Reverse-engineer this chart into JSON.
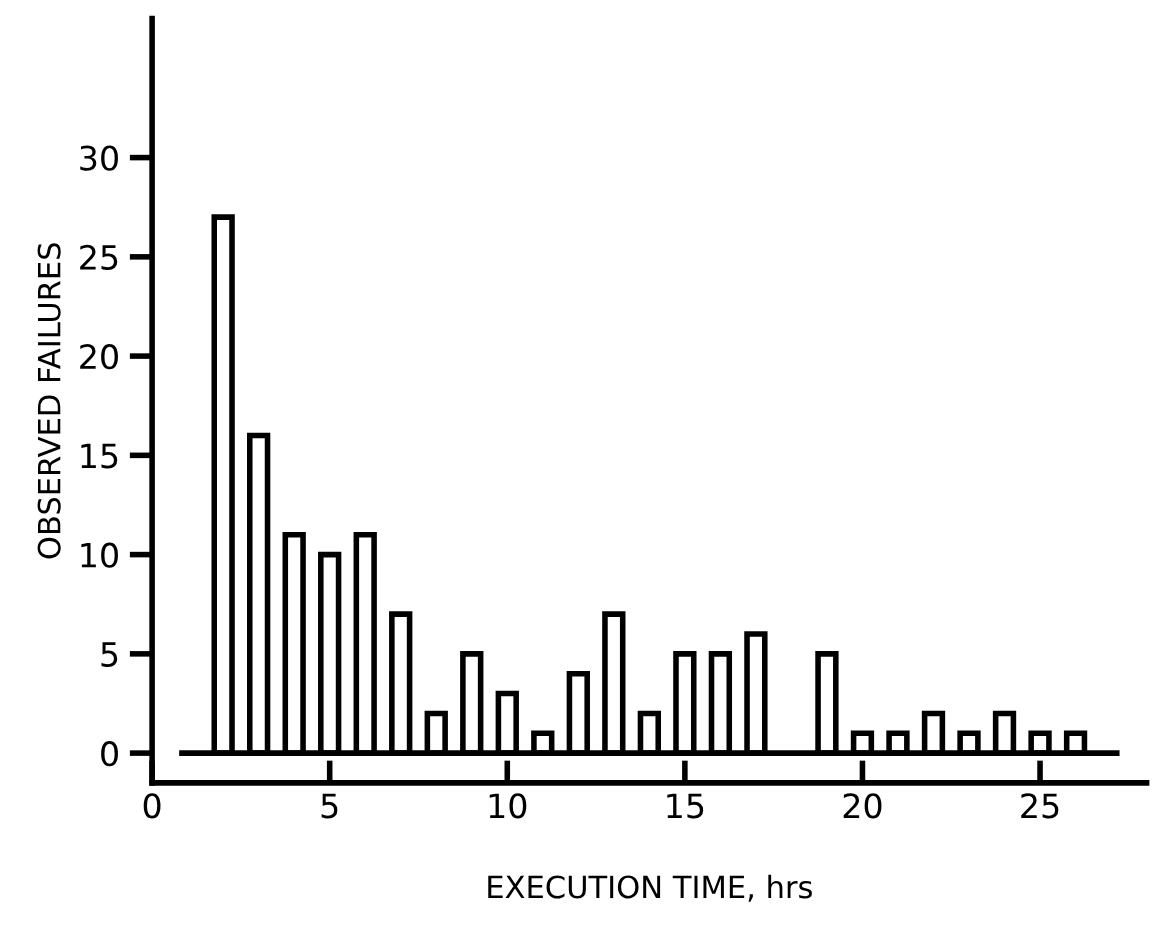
{
  "chart_data": {
    "type": "bar",
    "xlabel": "EXECUTION TIME, hrs",
    "ylabel": "OBSERVED FAILURES",
    "x": [
      2,
      3,
      4,
      5,
      6,
      7,
      8,
      9,
      10,
      11,
      12,
      13,
      14,
      15,
      16,
      17,
      19,
      20,
      21,
      22,
      23,
      24,
      25,
      26
    ],
    "values": [
      27,
      16,
      11,
      10,
      11,
      7,
      2,
      5,
      3,
      1,
      4,
      7,
      2,
      5,
      5,
      6,
      5,
      1,
      1,
      2,
      1,
      2,
      1,
      1
    ],
    "color": "#ffffff",
    "xlim": [
      0,
      28
    ],
    "ylim": [
      -1.5,
      37
    ],
    "xticks": [
      0,
      5,
      10,
      15,
      20,
      25
    ],
    "yticks": [
      0,
      5,
      10,
      15,
      20,
      25,
      30
    ],
    "ref_lines": [
      {
        "axis": "y",
        "value": 0,
        "color": "#000000"
      }
    ],
    "grid": false,
    "legend": false
  }
}
